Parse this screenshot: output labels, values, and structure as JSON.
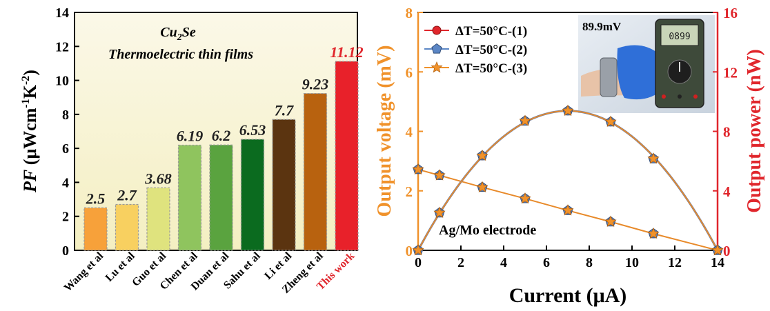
{
  "chart_data": [
    {
      "type": "bar",
      "title": "",
      "annotation": {
        "line1_base": "Cu",
        "line1_sub": "2",
        "line1_tail": "Se",
        "line2": "Thermoelectric thin films"
      },
      "ylabel": {
        "italic": "PF",
        "unit1": " (μWcm",
        "sup1": "-1",
        "unit2": "K",
        "sup2": "-2",
        "unit3": ")"
      },
      "ylim": [
        0,
        14
      ],
      "yticks": [
        "0",
        "2",
        "4",
        "6",
        "8",
        "10",
        "12",
        "14"
      ],
      "categories": [
        "Wang et al",
        "Lu et al",
        "Guo et al",
        "Chen et al",
        "Duan et al",
        "Sahu et al",
        "Li et al",
        "Zheng et al",
        "This work"
      ],
      "values": [
        2.5,
        2.7,
        3.68,
        6.19,
        6.2,
        6.53,
        7.7,
        9.23,
        11.12
      ],
      "value_labels": [
        "2.5",
        "2.7",
        "3.68",
        "6.19",
        "6.2",
        "6.53",
        "7.7",
        "9.23",
        "11.12"
      ],
      "bar_colors": [
        "#f7a13a",
        "#f8d060",
        "#dfe37e",
        "#8fc45e",
        "#5aa33f",
        "#0b6b1f",
        "#5b3410",
        "#b8620f",
        "#e8212a"
      ],
      "highlight_color": "#e0262c",
      "grid": false
    },
    {
      "type": "line",
      "xlabel": "Current (μA)",
      "ylabel_left": "Output voltage (mV)",
      "ylabel_right": "Output power (nW)",
      "xlim": [
        0,
        14
      ],
      "ylim_left": [
        0,
        8
      ],
      "ylim_right": [
        0,
        16
      ],
      "xticks": [
        "0",
        "2",
        "4",
        "6",
        "8",
        "10",
        "12",
        "14"
      ],
      "yticks_left": [
        "0",
        "2",
        "4",
        "6",
        "8"
      ],
      "yticks_right": [
        "0",
        "4",
        "8",
        "12",
        "16"
      ],
      "left_axis_color": "#f0922b",
      "right_axis_color": "#e0262c",
      "x": [
        0,
        1,
        3,
        5,
        7,
        9,
        11,
        14
      ],
      "voltage": [
        2.72,
        2.52,
        2.12,
        1.74,
        1.34,
        0.96,
        0.56,
        0.0
      ],
      "power": [
        0.0,
        2.52,
        6.36,
        8.7,
        9.38,
        8.64,
        6.16,
        0.0
      ],
      "series": [
        {
          "name": "ΔT=50°C-(1)",
          "marker": "circle",
          "color": "#e0262c"
        },
        {
          "name": "ΔT=50°C-(2)",
          "marker": "pentagon",
          "color": "#5b86c5"
        },
        {
          "name": "ΔT=50°C-(3)",
          "marker": "star",
          "color": "#f0922b"
        }
      ],
      "legend_position": "top-left",
      "annotation": "Ag/Mo electrode",
      "inset_reading": "89.9mV",
      "meter_display": "0899",
      "grid": false
    }
  ]
}
